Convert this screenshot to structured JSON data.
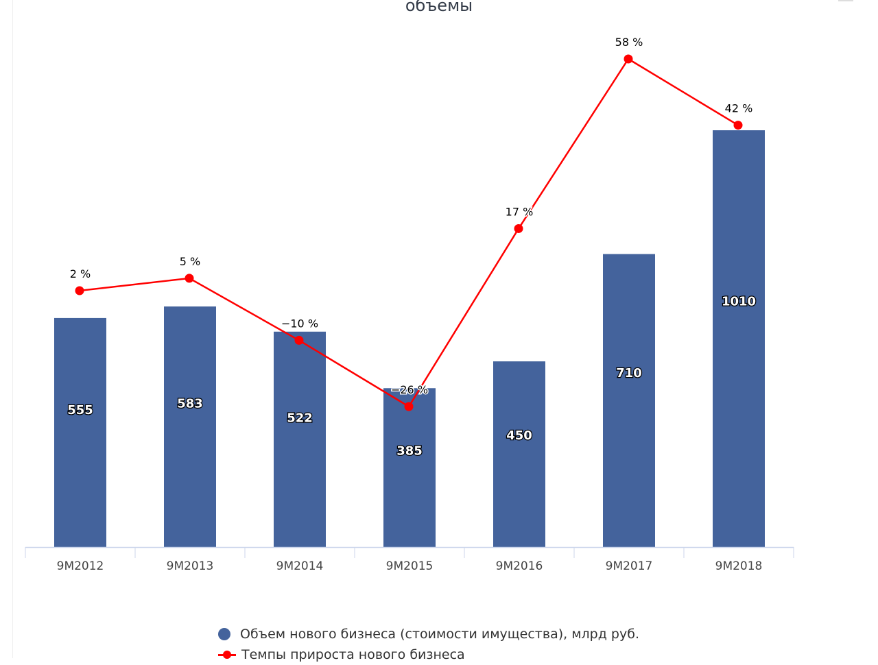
{
  "chart_data": {
    "type": "bar",
    "title": "объемы",
    "categories": [
      "9M2012",
      "9M2013",
      "9M2014",
      "9M2015",
      "9M2016",
      "9M2017",
      "9M2018"
    ],
    "series": [
      {
        "name": "Объем нового бизнеса (стоимости имущества), млрд руб.",
        "type": "bar",
        "values": [
          555,
          583,
          522,
          385,
          450,
          710,
          1010
        ],
        "value_labels": [
          "555",
          "583",
          "522",
          "385",
          "450",
          "710",
          "1010"
        ],
        "color": "#44639c"
      },
      {
        "name": "Темпы прироста нового бизнеса",
        "type": "line",
        "values": [
          2,
          5,
          -10,
          -26,
          17,
          58,
          42
        ],
        "value_labels": [
          "2 %",
          "5 %",
          "−10 %",
          "−26 %",
          "17 %",
          "58 %",
          "42 %"
        ],
        "color": "#ff0000"
      }
    ],
    "bar_axis_range": [
      0,
      1010
    ],
    "line_axis_range": [
      -26,
      58
    ],
    "grid": false,
    "legend_position": "bottom-center"
  }
}
